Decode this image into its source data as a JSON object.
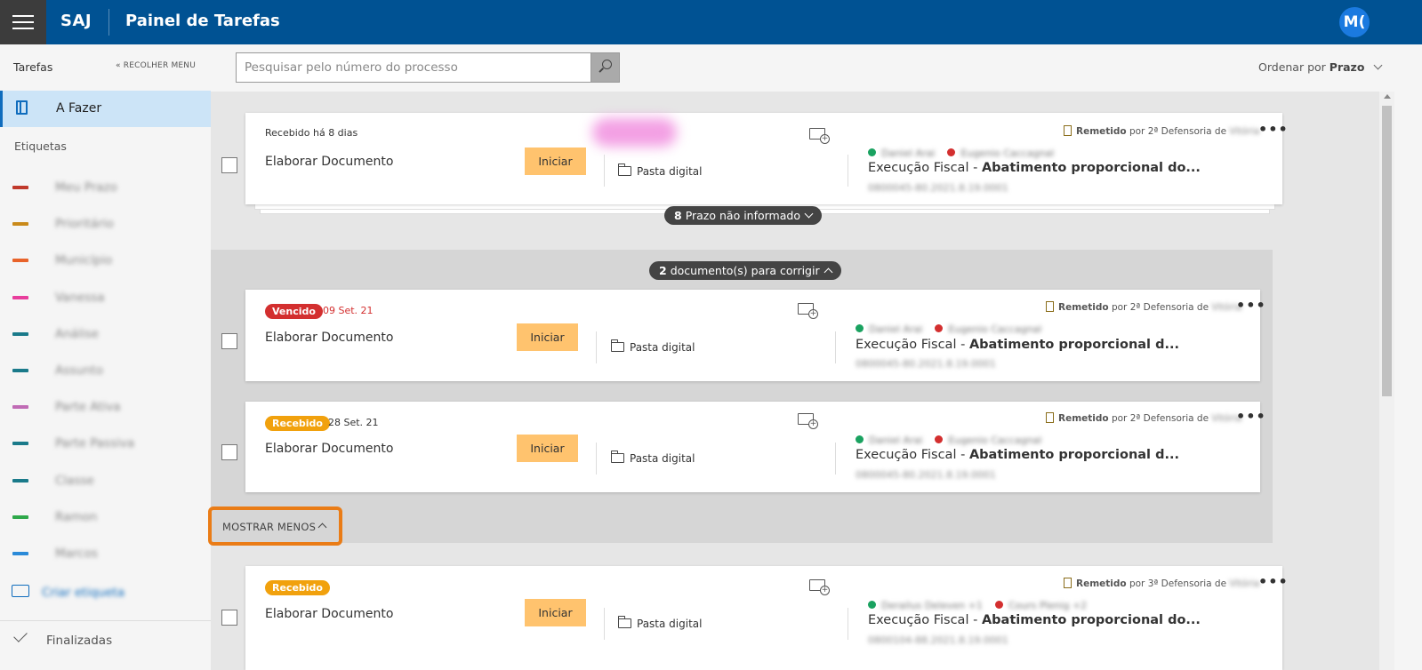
{
  "header": {
    "brand": "SAJ",
    "title": "Painel de Tarefas",
    "user_initials": "M("
  },
  "sidebar": {
    "heading": "Tarefas",
    "collapse_label": "« RECOLHER MENU",
    "active_item": "A Fazer",
    "labels_heading": "Etiquetas",
    "tags": [
      {
        "name": "Meu Prazo",
        "color": "#c0392b"
      },
      {
        "name": "Prioritário",
        "color": "#c98a1a"
      },
      {
        "name": "Município",
        "color": "#e8632a"
      },
      {
        "name": "Vanessa",
        "color": "#e83e9c"
      },
      {
        "name": "Análise",
        "color": "#1a7a8a"
      },
      {
        "name": "Assunto",
        "color": "#1a7a8a"
      },
      {
        "name": "Parte Ativa",
        "color": "#c06bb5"
      },
      {
        "name": "Parte Passiva",
        "color": "#1a7a8a"
      },
      {
        "name": "Classe",
        "color": "#1a7a8a"
      },
      {
        "name": "Ramon",
        "color": "#2ea84a"
      },
      {
        "name": "Marcos",
        "color": "#2a8ad8"
      }
    ],
    "create_label": "Criar etiqueta",
    "finished": "Finalizadas"
  },
  "search": {
    "placeholder": "Pesquisar pelo número do processo",
    "value": ""
  },
  "order": {
    "prefix": "Ordenar por",
    "value": "Prazo"
  },
  "common": {
    "task_title": "Elaborar Documento",
    "start_button": "Iniciar",
    "folder_label": "Pasta digital",
    "sent_label": "Remetido",
    "class_prefix": "Execução Fiscal - ",
    "more": "•••"
  },
  "cards": [
    {
      "status_text": "Recebido há 8 dias",
      "sent_by": "por 2ª Defensoria de",
      "sent_blur": "Vitória",
      "party_active": "Daniel Arai",
      "party_passive": "Eugenio Caccagnal",
      "class_subject": "Abatimento proporcional do...",
      "process_number": "0800045-80.2021.8.19.0001"
    },
    {
      "badge": "Vencido",
      "badge_color": "#d32f2f",
      "date": "09 Set. 21",
      "sent_by": "por 2ª Defensoria de",
      "sent_blur": "Vitória",
      "party_active": "Daniel Arai",
      "party_passive": "Eugenio Caccagnal",
      "class_subject": "Abatimento proporcional d...",
      "process_number": "0800045-80.2021.8.19.0001"
    },
    {
      "badge": "Recebido",
      "badge_color": "#f1a10d",
      "date": "28 Set. 21",
      "sent_by": "por 2ª Defensoria de",
      "sent_blur": "Vitória",
      "party_active": "Daniel Arai",
      "party_passive": "Eugenio Caccagnal",
      "class_subject": "Abatimento proporcional d...",
      "process_number": "0800045-80.2021.8.19.0001"
    },
    {
      "badge": "Recebido",
      "badge_color": "#f1a10d",
      "sent_by": "por 3ª Defensoria de",
      "sent_blur": "Vitória",
      "party_active": "Derailus Deleven +1",
      "party_passive": "Cours Plenig +2",
      "class_subject": "Abatimento proporcional do...",
      "process_number": "0800104-88.2021.8.19.0001"
    }
  ],
  "group1": {
    "count": "8",
    "label": "Prazo não informado"
  },
  "group2": {
    "count": "2",
    "label": "documento(s) para corrigir"
  },
  "show_less": "MOSTRAR MENOS"
}
